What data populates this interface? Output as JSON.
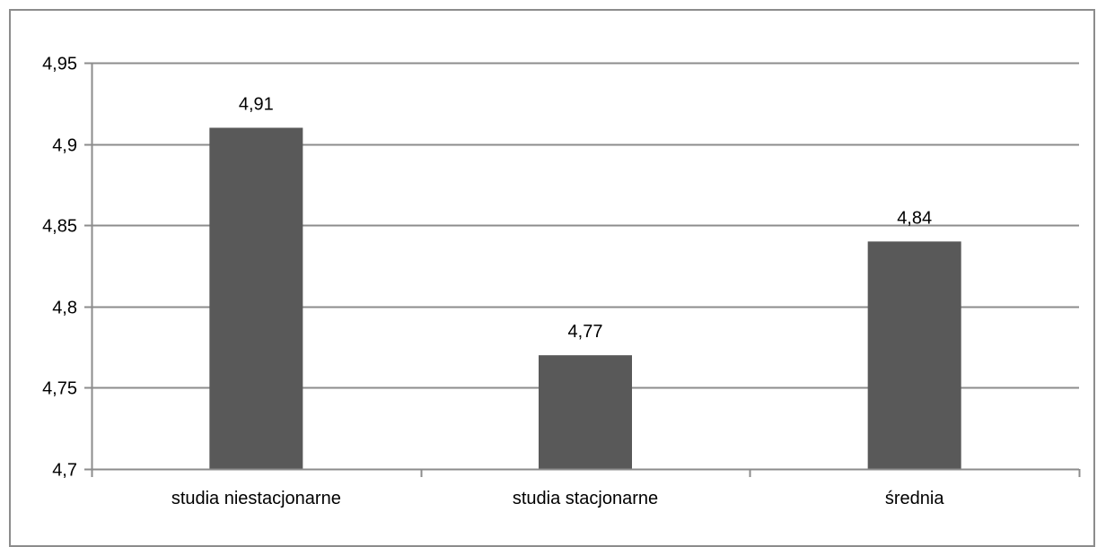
{
  "chart_data": {
    "type": "bar",
    "categories": [
      "studia niestacjonarne",
      "studia stacjonarne",
      "średnia"
    ],
    "values": [
      4.91,
      4.77,
      4.84
    ],
    "value_labels": [
      "4,91",
      "4,77",
      "4,84"
    ],
    "ylim": [
      4.7,
      4.95
    ],
    "yticks": [
      4.7,
      4.75,
      4.8,
      4.85,
      4.9,
      4.95
    ],
    "ytick_labels": [
      "4,7",
      "4,75",
      "4,8",
      "4,85",
      "4,9",
      "4,95"
    ],
    "grid": true,
    "legend": "none",
    "colors": {
      "bar": "#595959",
      "grid": "#8c8c8c",
      "axis": "#8c8c8c"
    }
  }
}
